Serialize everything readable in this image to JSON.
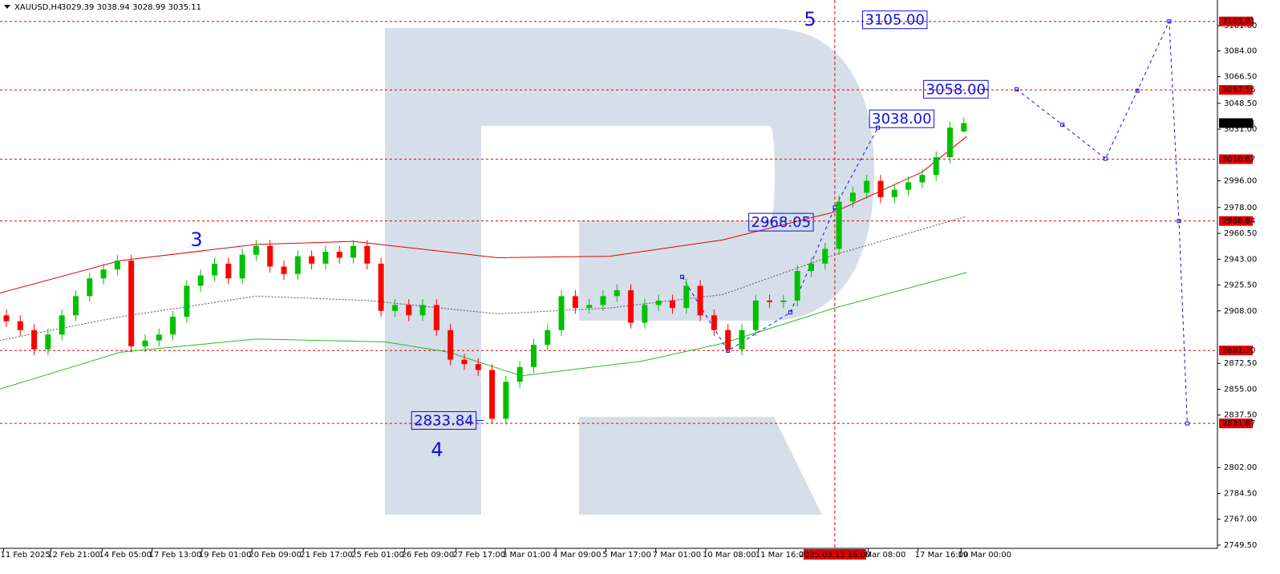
{
  "chart_data": {
    "type": "candlestick",
    "title": "XAUUSD,H4",
    "subtitle": "3029.39 3038.94 3028.99 3035.11",
    "up_color": "#00c000",
    "down_color": "#ff0000",
    "open": [
      2905,
      2901,
      2895,
      2882,
      2892,
      2905,
      2918,
      2930,
      2936,
      2942,
      2884,
      2888,
      2892,
      2904,
      2925,
      2932,
      2940,
      2930,
      2946,
      2952,
      2938,
      2933,
      2945,
      2940,
      2948,
      2944,
      2952,
      2940,
      2908,
      2912,
      2905,
      2912,
      2895,
      2875,
      2872,
      2868,
      2835,
      2860,
      2870,
      2885,
      2895,
      2918,
      2910,
      2912,
      2918,
      2922,
      2900,
      2912,
      2915,
      2910,
      2925,
      2905,
      2895,
      2882,
      2895,
      2915,
      2914,
      2915,
      2935,
      2940,
      2950,
      2982,
      2988,
      2996,
      2985,
      2990,
      2995,
      3000,
      3012,
      3029.39
    ],
    "high": [
      2909,
      2905,
      2899,
      2896,
      2909,
      2922,
      2934,
      2940,
      2946,
      2946,
      2892,
      2896,
      2908,
      2929,
      2936,
      2944,
      2944,
      2950,
      2956,
      2956,
      2942,
      2949,
      2949,
      2952,
      2952,
      2956,
      2956,
      2944,
      2916,
      2916,
      2916,
      2916,
      2899,
      2879,
      2876,
      2872,
      2864,
      2874,
      2889,
      2899,
      2922,
      2922,
      2916,
      2922,
      2926,
      2926,
      2916,
      2919,
      2919,
      2930,
      2929,
      2909,
      2899,
      2899,
      2919,
      2919,
      2919,
      2939,
      2944,
      2954,
      2986,
      2992,
      3000,
      3000,
      2994,
      2999,
      3004,
      3016,
      3036,
      3038.94
    ],
    "low": [
      2897,
      2891,
      2878,
      2878,
      2888,
      2901,
      2914,
      2926,
      2932,
      2880,
      2880,
      2884,
      2888,
      2900,
      2921,
      2928,
      2926,
      2926,
      2942,
      2934,
      2929,
      2929,
      2936,
      2936,
      2940,
      2940,
      2936,
      2904,
      2904,
      2901,
      2901,
      2891,
      2871,
      2868,
      2864,
      2831.87,
      2831,
      2856,
      2866,
      2881,
      2891,
      2906,
      2906,
      2908,
      2914,
      2896,
      2896,
      2908,
      2906,
      2906,
      2901,
      2891,
      2880,
      2878,
      2891,
      2910,
      2910,
      2911,
      2931,
      2936,
      2946,
      2978,
      2984,
      2981,
      2981,
      2986,
      2991,
      2996,
      3008,
      3028.99
    ],
    "close": [
      2901,
      2895,
      2882,
      2892,
      2905,
      2918,
      2930,
      2936,
      2942,
      2884,
      2888,
      2892,
      2904,
      2925,
      2932,
      2940,
      2930,
      2946,
      2952,
      2938,
      2933,
      2945,
      2940,
      2948,
      2944,
      2952,
      2940,
      2908,
      2912,
      2905,
      2912,
      2895,
      2875,
      2872,
      2868,
      2835,
      2860,
      2870,
      2885,
      2895,
      2918,
      2910,
      2912,
      2918,
      2922,
      2900,
      2912,
      2915,
      2910,
      2925,
      2905,
      2895,
      2882,
      2895,
      2915,
      2914,
      2915,
      2935,
      2940,
      2950,
      2982,
      2988,
      2996,
      2985,
      2990,
      2995,
      3000,
      3012,
      3032,
      3035.11
    ],
    "series": [
      {
        "color": "#e00000",
        "x": [
          -0.5,
          8.2,
          18,
          25,
          35.4,
          43.5,
          51.6,
          59.7,
          66,
          69.2
        ],
        "values": [
          2920,
          2942,
          2953,
          2955,
          2944,
          2945,
          2956,
          2975,
          3002,
          3026
        ]
      },
      {
        "color": "#555555",
        "dash": true,
        "x": [
          -0.5,
          8.2,
          18,
          26.1,
          35.4,
          43.5,
          51.6,
          59.7,
          69.2
        ],
        "values": [
          2888,
          2904,
          2918,
          2915,
          2906,
          2910,
          2919,
          2946,
          2972
        ]
      },
      {
        "color": "#20c020",
        "x": [
          -0.5,
          8.2,
          18,
          27.3,
          31.9,
          37.1,
          45.8,
          51.6,
          59.7,
          69.2
        ],
        "values": [
          2855,
          2880,
          2889,
          2887,
          2880,
          2864,
          2874,
          2886,
          2910,
          2934
        ]
      }
    ],
    "wave_path": {
      "x": [
        48.7,
        52,
        56.5,
        59.7,
        62.8
      ],
      "values": [
        2931,
        2881,
        2907,
        2978,
        3032
      ]
    },
    "forecast_path": {
      "x": [
        72.8,
        76.1,
        79.2,
        81.5,
        83.8,
        84.5,
        85.1
      ],
      "values": [
        3058,
        3034,
        3011,
        3057,
        3103.91,
        2968.84,
        2831.87
      ]
    },
    "annotations": [
      {
        "label": "3105.00",
        "x": 61.7,
        "value": 3105,
        "end": 66.3
      },
      {
        "label": "3058.00",
        "x": 66.1,
        "value": 3058,
        "end": 70.2
      },
      {
        "label": "3038.00",
        "x": 62.2,
        "value": 3038,
        "end": 66.8
      },
      {
        "label": "2968.05",
        "x": 53.5,
        "value": 2968.05,
        "end": 58.1
      },
      {
        "label": "2833.84",
        "x": 29.2,
        "value": 2833.84,
        "end": 34.4
      }
    ],
    "wave_labels": [
      "3",
      "4",
      "5"
    ],
    "levels": [
      {
        "value": 3103.91,
        "label": "3103.91"
      },
      {
        "value": 3057.56,
        "label": "3057.56"
      },
      {
        "value": 3010.67,
        "label": "3010.67"
      },
      {
        "value": 2968.84,
        "label": "2968.84"
      },
      {
        "value": 2881.2,
        "label": "2881.20"
      },
      {
        "value": 2831.87,
        "label": "2831.87"
      }
    ],
    "level_color": "#e00000",
    "current_price": {
      "value": 3035.11,
      "label": "3035.11"
    },
    "cursor": {
      "value": 59.7,
      "label": "2025.03.13 16:00"
    },
    "xlim": [
      -0.46,
      87.1
    ],
    "ylim": [
      2747.3,
      3118.4
    ],
    "yticks": [
      {
        "value": 3101,
        "label": "3101.00"
      },
      {
        "value": 3084,
        "label": "3084.00"
      },
      {
        "value": 3066.5,
        "label": "3066.50"
      },
      {
        "value": 3048.5,
        "label": "3048.50"
      },
      {
        "value": 3031,
        "label": "3031.00"
      },
      {
        "value": 2996,
        "label": "2996.00"
      },
      {
        "value": 2978,
        "label": "2978.00"
      },
      {
        "value": 2960.5,
        "label": "2960.50"
      },
      {
        "value": 2943,
        "label": "2943.00"
      },
      {
        "value": 2925.5,
        "label": "2925.50"
      },
      {
        "value": 2908,
        "label": "2908.00"
      },
      {
        "value": 2872.5,
        "label": "2872.50"
      },
      {
        "value": 2855,
        "label": "2855.00"
      },
      {
        "value": 2837.5,
        "label": "2837.50"
      },
      {
        "value": 2802,
        "label": "2802.00"
      },
      {
        "value": 2784.5,
        "label": "2784.50"
      },
      {
        "value": 2767,
        "label": "2767.00"
      },
      {
        "value": 2749.5,
        "label": "2749.50"
      }
    ],
    "xticks": [
      {
        "value": -0.2,
        "label": "11 Feb 2025"
      },
      {
        "value": 3.2,
        "label": "12 Feb 21:00"
      },
      {
        "value": 6.9,
        "label": "14 Feb 05:00"
      },
      {
        "value": 10.5,
        "label": "17 Feb 13:00"
      },
      {
        "value": 14.1,
        "label": "19 Feb 01:00"
      },
      {
        "value": 17.7,
        "label": "20 Feb 09:00"
      },
      {
        "value": 21.4,
        "label": "21 Feb 17:00"
      },
      {
        "value": 25.1,
        "label": "25 Feb 01:00"
      },
      {
        "value": 28.7,
        "label": "26 Feb 09:00"
      },
      {
        "value": 32.4,
        "label": "27 Feb 17:00"
      },
      {
        "value": 35.95,
        "label": "3 Mar 01:00"
      },
      {
        "value": 39.6,
        "label": "4 Mar 09:00"
      },
      {
        "value": 43.2,
        "label": "5 Mar 17:00"
      },
      {
        "value": 46.8,
        "label": "7 Mar 01:00"
      },
      {
        "value": 50.4,
        "label": "10 Mar 08:00"
      },
      {
        "value": 54.2,
        "label": "11 Mar 16:00"
      },
      {
        "value": 62.1,
        "label": "Mar 08:00"
      },
      {
        "value": 65.7,
        "label": "17 Mar 16:00"
      },
      {
        "value": 68.8,
        "label": "19 Mar 00:00"
      }
    ]
  }
}
